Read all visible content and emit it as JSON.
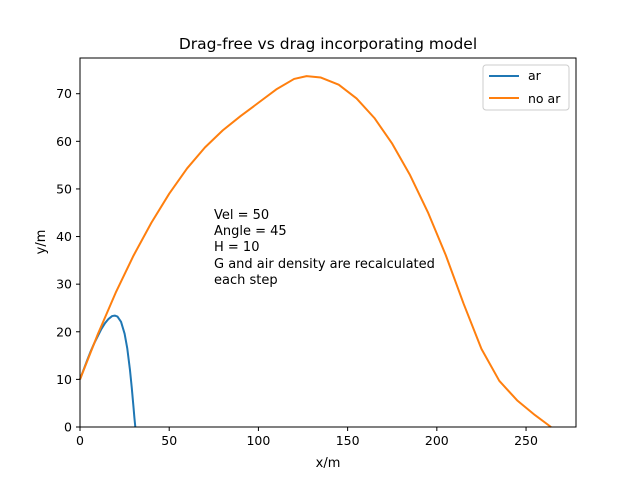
{
  "chart_data": {
    "type": "line",
    "title": "Drag-free vs drag incorporating model",
    "xlabel": "x/m",
    "ylabel": "y/m",
    "xlim": [
      0,
      278
    ],
    "ylim": [
      0,
      77.5
    ],
    "xticks": [
      0,
      50,
      100,
      150,
      200,
      250
    ],
    "yticks": [
      0,
      10,
      20,
      30,
      40,
      50,
      60,
      70
    ],
    "grid": false,
    "legend_position": "top-right",
    "annotation": {
      "lines": [
        "Vel = 50",
        "Angle = 45",
        "H = 10",
        "G and air density are recalculated",
        "each step"
      ],
      "x": 75,
      "y": 44.5
    },
    "series": [
      {
        "name": "ar",
        "color": "#1f77b4",
        "x": [
          0,
          2,
          4,
          6,
          8,
          10,
          12,
          14,
          16,
          18,
          19.5,
          21,
          23,
          25,
          26.5,
          28,
          29,
          30,
          30.5,
          31
        ],
        "y": [
          10,
          12.0,
          14.0,
          15.9,
          17.6,
          19.1,
          20.6,
          21.8,
          22.7,
          23.3,
          23.4,
          23.2,
          22.1,
          19.6,
          16.5,
          12.0,
          8.3,
          4.1,
          1.9,
          0
        ]
      },
      {
        "name": "no ar",
        "color": "#ff7f0e",
        "x": [
          0,
          10,
          20,
          30,
          40,
          50,
          60,
          70,
          80,
          90,
          100,
          110,
          120,
          127,
          135,
          145,
          155,
          165,
          175,
          185,
          195,
          205,
          215,
          225,
          235,
          245,
          255,
          264
        ],
        "y": [
          10,
          19.5,
          28.2,
          36.0,
          42.9,
          49.0,
          54.3,
          58.7,
          62.3,
          65.3,
          68.1,
          70.9,
          73.1,
          73.7,
          73.4,
          71.9,
          69.0,
          64.9,
          59.5,
          52.9,
          45.1,
          36.1,
          25.9,
          16.4,
          9.7,
          5.6,
          2.5,
          0
        ]
      }
    ]
  }
}
